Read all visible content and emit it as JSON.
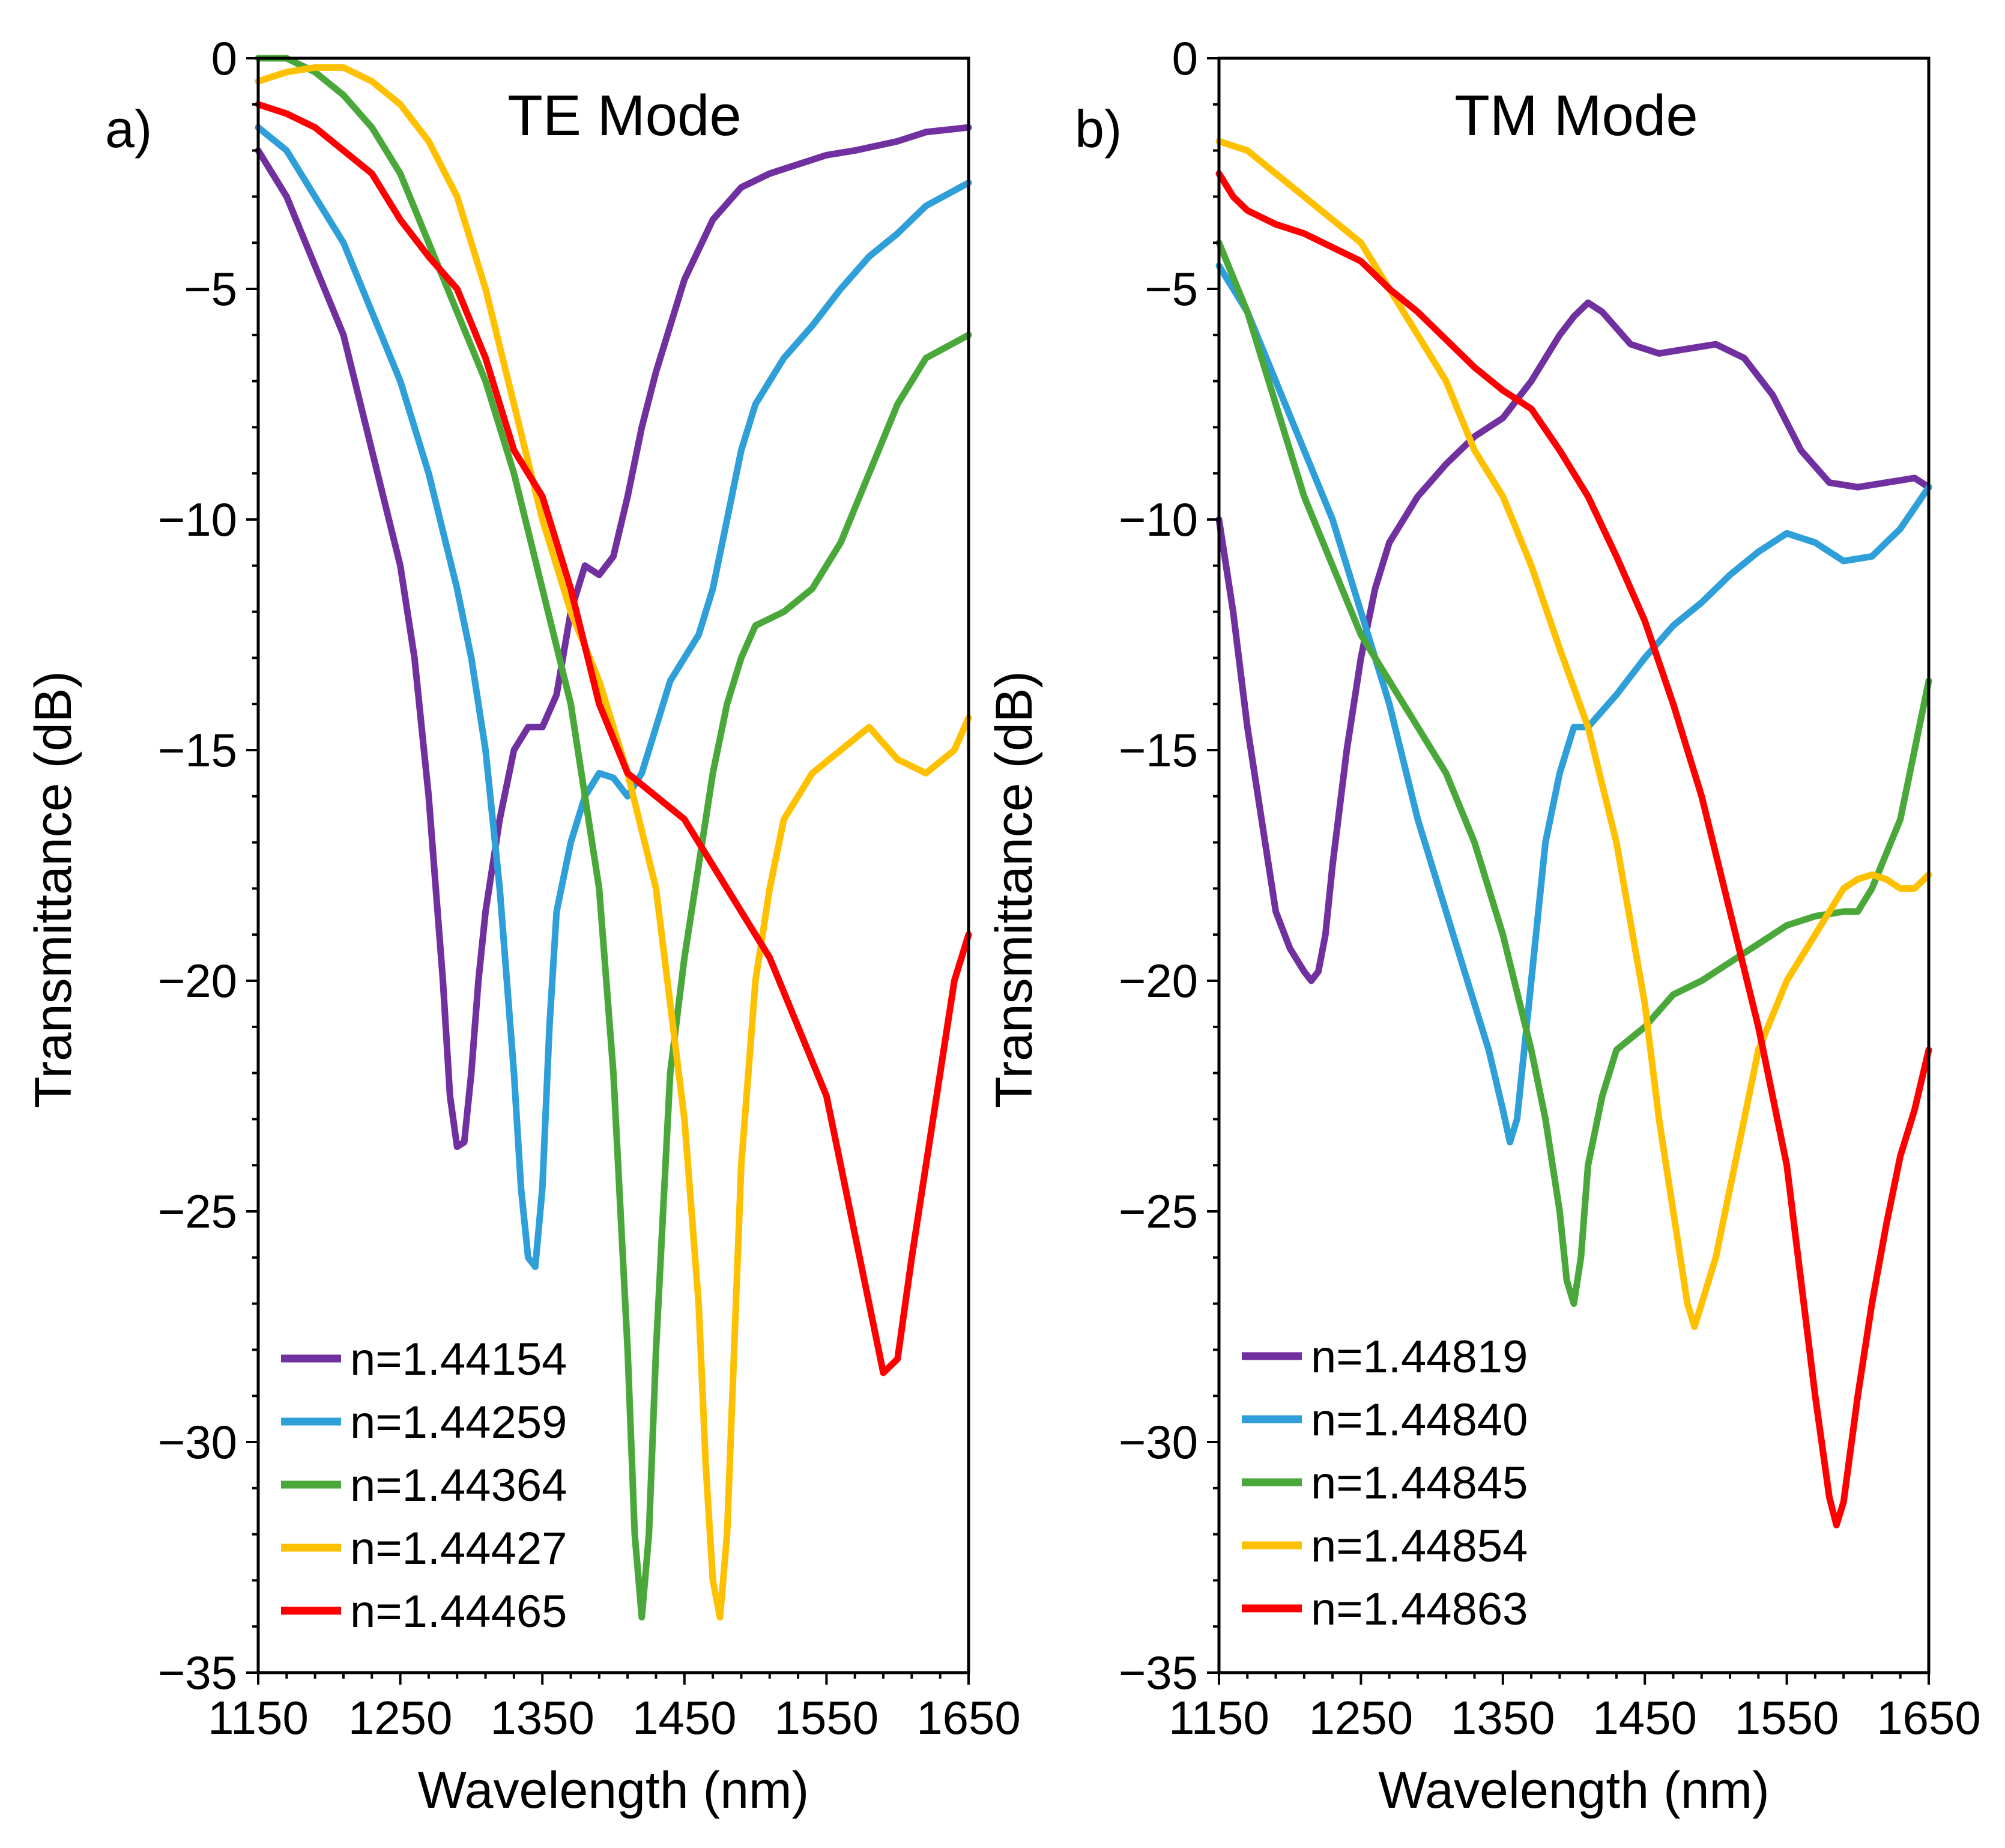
{
  "chart_data": [
    {
      "type": "line",
      "panel_label": "a)",
      "title": "TE Mode",
      "xlabel": "Wavelength (nm)",
      "ylabel": "Transmittance (dB)",
      "xlim": [
        1150,
        1650
      ],
      "ylim": [
        -35,
        0
      ],
      "xticks": [
        "1150",
        "1250",
        "1350",
        "1450",
        "1550",
        "1650"
      ],
      "yticks": [
        "0",
        "−5",
        "−10",
        "−15",
        "−20",
        "−25",
        "−30",
        "−35"
      ],
      "legend_position": "bottom-left",
      "series": [
        {
          "name": "n=1.44154",
          "color": "#7030a0",
          "x": [
            1150,
            1170,
            1190,
            1210,
            1230,
            1250,
            1260,
            1270,
            1280,
            1285,
            1290,
            1295,
            1300,
            1305,
            1310,
            1320,
            1330,
            1340,
            1350,
            1360,
            1370,
            1380,
            1390,
            1400,
            1410,
            1420,
            1430,
            1440,
            1450,
            1470,
            1490,
            1510,
            1530,
            1550,
            1570,
            1600,
            1620,
            1650
          ],
          "y": [
            -2,
            -3,
            -4.5,
            -6,
            -8.5,
            -11,
            -13,
            -16,
            -20,
            -22.5,
            -23.6,
            -23.5,
            -22,
            -20,
            -18.5,
            -16.5,
            -15,
            -14.5,
            -14.5,
            -13.8,
            -12,
            -11,
            -11.2,
            -10.8,
            -9.5,
            -8,
            -6.8,
            -5.8,
            -4.8,
            -3.5,
            -2.8,
            -2.5,
            -2.3,
            -2.1,
            -2,
            -1.8,
            -1.6,
            -1.5
          ]
        },
        {
          "name": "n=1.44259",
          "color": "#2e9fd8",
          "x": [
            1150,
            1170,
            1190,
            1210,
            1230,
            1250,
            1270,
            1290,
            1300,
            1310,
            1320,
            1330,
            1335,
            1340,
            1345,
            1350,
            1355,
            1360,
            1370,
            1380,
            1390,
            1400,
            1410,
            1420,
            1430,
            1440,
            1450,
            1460,
            1470,
            1480,
            1490,
            1500,
            1520,
            1540,
            1560,
            1580,
            1600,
            1620,
            1650
          ],
          "y": [
            -1.5,
            -2,
            -3,
            -4,
            -5.5,
            -7,
            -9,
            -11.5,
            -13,
            -15,
            -18,
            -22,
            -24.5,
            -26,
            -26.2,
            -24.5,
            -21,
            -18.5,
            -17,
            -16,
            -15.5,
            -15.6,
            -16,
            -15.5,
            -14.5,
            -13.5,
            -13,
            -12.5,
            -11.5,
            -10,
            -8.5,
            -7.5,
            -6.5,
            -5.8,
            -5,
            -4.3,
            -3.8,
            -3.2,
            -2.7
          ]
        },
        {
          "name": "n=1.44364",
          "color": "#4aa83a",
          "x": [
            1150,
            1170,
            1190,
            1210,
            1230,
            1250,
            1270,
            1290,
            1310,
            1330,
            1350,
            1370,
            1390,
            1400,
            1410,
            1415,
            1420,
            1425,
            1430,
            1440,
            1450,
            1460,
            1470,
            1480,
            1490,
            1500,
            1520,
            1540,
            1560,
            1580,
            1600,
            1620,
            1650
          ],
          "y": [
            0,
            0,
            -0.3,
            -0.8,
            -1.5,
            -2.5,
            -4,
            -5.5,
            -7,
            -9,
            -11.5,
            -14,
            -18,
            -22,
            -28,
            -32,
            -33.8,
            -32,
            -28,
            -22,
            -19.5,
            -17.5,
            -15.5,
            -14,
            -13,
            -12.3,
            -12,
            -11.5,
            -10.5,
            -9,
            -7.5,
            -6.5,
            -6
          ]
        },
        {
          "name": "n=1.44427",
          "color": "#ffc000",
          "x": [
            1150,
            1170,
            1190,
            1210,
            1230,
            1250,
            1270,
            1290,
            1310,
            1330,
            1350,
            1370,
            1390,
            1410,
            1430,
            1450,
            1460,
            1465,
            1470,
            1475,
            1480,
            1485,
            1490,
            1500,
            1510,
            1520,
            1540,
            1560,
            1580,
            1600,
            1620,
            1640,
            1650
          ],
          "y": [
            -0.5,
            -0.3,
            -0.2,
            -0.2,
            -0.5,
            -1,
            -1.8,
            -3,
            -5,
            -7.5,
            -10,
            -12,
            -13.5,
            -15.5,
            -18,
            -23,
            -27,
            -30.5,
            -33,
            -33.8,
            -32,
            -28,
            -24,
            -20,
            -18,
            -16.5,
            -15.5,
            -15,
            -14.5,
            -15.2,
            -15.5,
            -15,
            -14.3
          ]
        },
        {
          "name": "n=1.44465",
          "color": "#ff0000",
          "x": [
            1150,
            1170,
            1190,
            1210,
            1230,
            1250,
            1270,
            1290,
            1310,
            1330,
            1350,
            1370,
            1390,
            1410,
            1430,
            1450,
            1470,
            1490,
            1510,
            1530,
            1550,
            1560,
            1570,
            1580,
            1590,
            1600,
            1610,
            1620,
            1630,
            1640,
            1650
          ],
          "y": [
            -1,
            -1.2,
            -1.5,
            -2,
            -2.5,
            -3.5,
            -4.3,
            -5,
            -6.5,
            -8.5,
            -9.5,
            -11.5,
            -14,
            -15.5,
            -16,
            -16.5,
            -17.5,
            -18.5,
            -19.5,
            -21,
            -22.5,
            -24,
            -25.5,
            -27,
            -28.5,
            -28.2,
            -26,
            -24,
            -22,
            -20,
            -19
          ]
        }
      ]
    },
    {
      "type": "line",
      "panel_label": "b)",
      "title": "TM Mode",
      "xlabel": "Wavelength (nm)",
      "ylabel": "Transmittance (dB)",
      "xlim": [
        1150,
        1650
      ],
      "ylim": [
        -35,
        0
      ],
      "xticks": [
        "1150",
        "1250",
        "1350",
        "1450",
        "1550",
        "1650"
      ],
      "yticks": [
        "0",
        "−5",
        "−10",
        "−15",
        "−20",
        "−25",
        "−30",
        "−35"
      ],
      "legend_position": "bottom-left",
      "series": [
        {
          "name": "n=1.44819",
          "color": "#7030a0",
          "x": [
            1150,
            1160,
            1170,
            1180,
            1190,
            1200,
            1210,
            1215,
            1220,
            1225,
            1230,
            1240,
            1250,
            1260,
            1270,
            1290,
            1310,
            1330,
            1350,
            1370,
            1390,
            1400,
            1410,
            1420,
            1440,
            1460,
            1480,
            1500,
            1520,
            1540,
            1560,
            1580,
            1600,
            1620,
            1640,
            1650
          ],
          "y": [
            -10,
            -12,
            -14.5,
            -16.5,
            -18.5,
            -19.3,
            -19.8,
            -20,
            -19.8,
            -19,
            -17.5,
            -15,
            -13,
            -11.5,
            -10.5,
            -9.5,
            -8.8,
            -8.2,
            -7.8,
            -7,
            -6,
            -5.6,
            -5.3,
            -5.5,
            -6.2,
            -6.4,
            -6.3,
            -6.2,
            -6.5,
            -7.3,
            -8.5,
            -9.2,
            -9.3,
            -9.2,
            -9.1,
            -9.3
          ]
        },
        {
          "name": "n=1.44840",
          "color": "#2e9fd8",
          "x": [
            1150,
            1170,
            1190,
            1210,
            1230,
            1250,
            1270,
            1290,
            1310,
            1330,
            1340,
            1350,
            1355,
            1360,
            1365,
            1370,
            1380,
            1390,
            1400,
            1410,
            1430,
            1450,
            1470,
            1490,
            1510,
            1530,
            1550,
            1570,
            1590,
            1610,
            1630,
            1650
          ],
          "y": [
            -4.5,
            -5.5,
            -7,
            -8.5,
            -10,
            -12,
            -14,
            -16.5,
            -18.5,
            -20.5,
            -21.5,
            -22.8,
            -23.5,
            -23,
            -21.5,
            -20,
            -17,
            -15.5,
            -14.5,
            -14.5,
            -13.8,
            -13,
            -12.3,
            -11.8,
            -11.2,
            -10.7,
            -10.3,
            -10.5,
            -10.9,
            -10.8,
            -10.2,
            -9.3
          ]
        },
        {
          "name": "n=1.44845",
          "color": "#4aa83a",
          "x": [
            1150,
            1170,
            1190,
            1210,
            1230,
            1250,
            1270,
            1290,
            1310,
            1330,
            1350,
            1370,
            1380,
            1390,
            1395,
            1400,
            1405,
            1410,
            1420,
            1430,
            1450,
            1470,
            1490,
            1510,
            1530,
            1550,
            1570,
            1590,
            1600,
            1610,
            1630,
            1650
          ],
          "y": [
            -4,
            -5.5,
            -7.5,
            -9.5,
            -11,
            -12.5,
            -13.5,
            -14.5,
            -15.5,
            -17,
            -19,
            -21.5,
            -23,
            -25,
            -26.5,
            -27,
            -26,
            -24,
            -22.5,
            -21.5,
            -21,
            -20.3,
            -20,
            -19.6,
            -19.2,
            -18.8,
            -18.6,
            -18.5,
            -18.5,
            -18,
            -16.5,
            -13.5
          ]
        },
        {
          "name": "n=1.44854",
          "color": "#ffc000",
          "x": [
            1150,
            1170,
            1190,
            1210,
            1230,
            1250,
            1270,
            1290,
            1310,
            1330,
            1350,
            1370,
            1390,
            1410,
            1430,
            1450,
            1460,
            1470,
            1480,
            1485,
            1490,
            1500,
            1510,
            1520,
            1530,
            1550,
            1570,
            1590,
            1600,
            1610,
            1620,
            1630,
            1640,
            1650
          ],
          "y": [
            -1.8,
            -2,
            -2.5,
            -3,
            -3.5,
            -4,
            -5,
            -6,
            -7,
            -8.5,
            -9.5,
            -11,
            -12.8,
            -14.5,
            -17,
            -20.5,
            -23,
            -25,
            -27,
            -27.5,
            -27,
            -26,
            -24.5,
            -23,
            -21.5,
            -20,
            -19,
            -18,
            -17.8,
            -17.7,
            -17.8,
            -18,
            -18,
            -17.7
          ]
        },
        {
          "name": "n=1.44863",
          "color": "#ff0000",
          "x": [
            1150,
            1160,
            1170,
            1190,
            1210,
            1230,
            1250,
            1270,
            1290,
            1310,
            1330,
            1350,
            1370,
            1390,
            1410,
            1430,
            1450,
            1470,
            1490,
            1510,
            1530,
            1550,
            1560,
            1570,
            1580,
            1585,
            1590,
            1600,
            1610,
            1620,
            1630,
            1640,
            1650
          ],
          "y": [
            -2.5,
            -3,
            -3.3,
            -3.6,
            -3.8,
            -4.1,
            -4.4,
            -5,
            -5.5,
            -6.1,
            -6.7,
            -7.2,
            -7.6,
            -8.5,
            -9.5,
            -10.8,
            -12.2,
            -14,
            -16,
            -18.5,
            -21,
            -24,
            -26.5,
            -29,
            -31.2,
            -31.8,
            -31.3,
            -29,
            -27,
            -25.3,
            -23.8,
            -22.8,
            -21.5
          ]
        }
      ]
    }
  ]
}
